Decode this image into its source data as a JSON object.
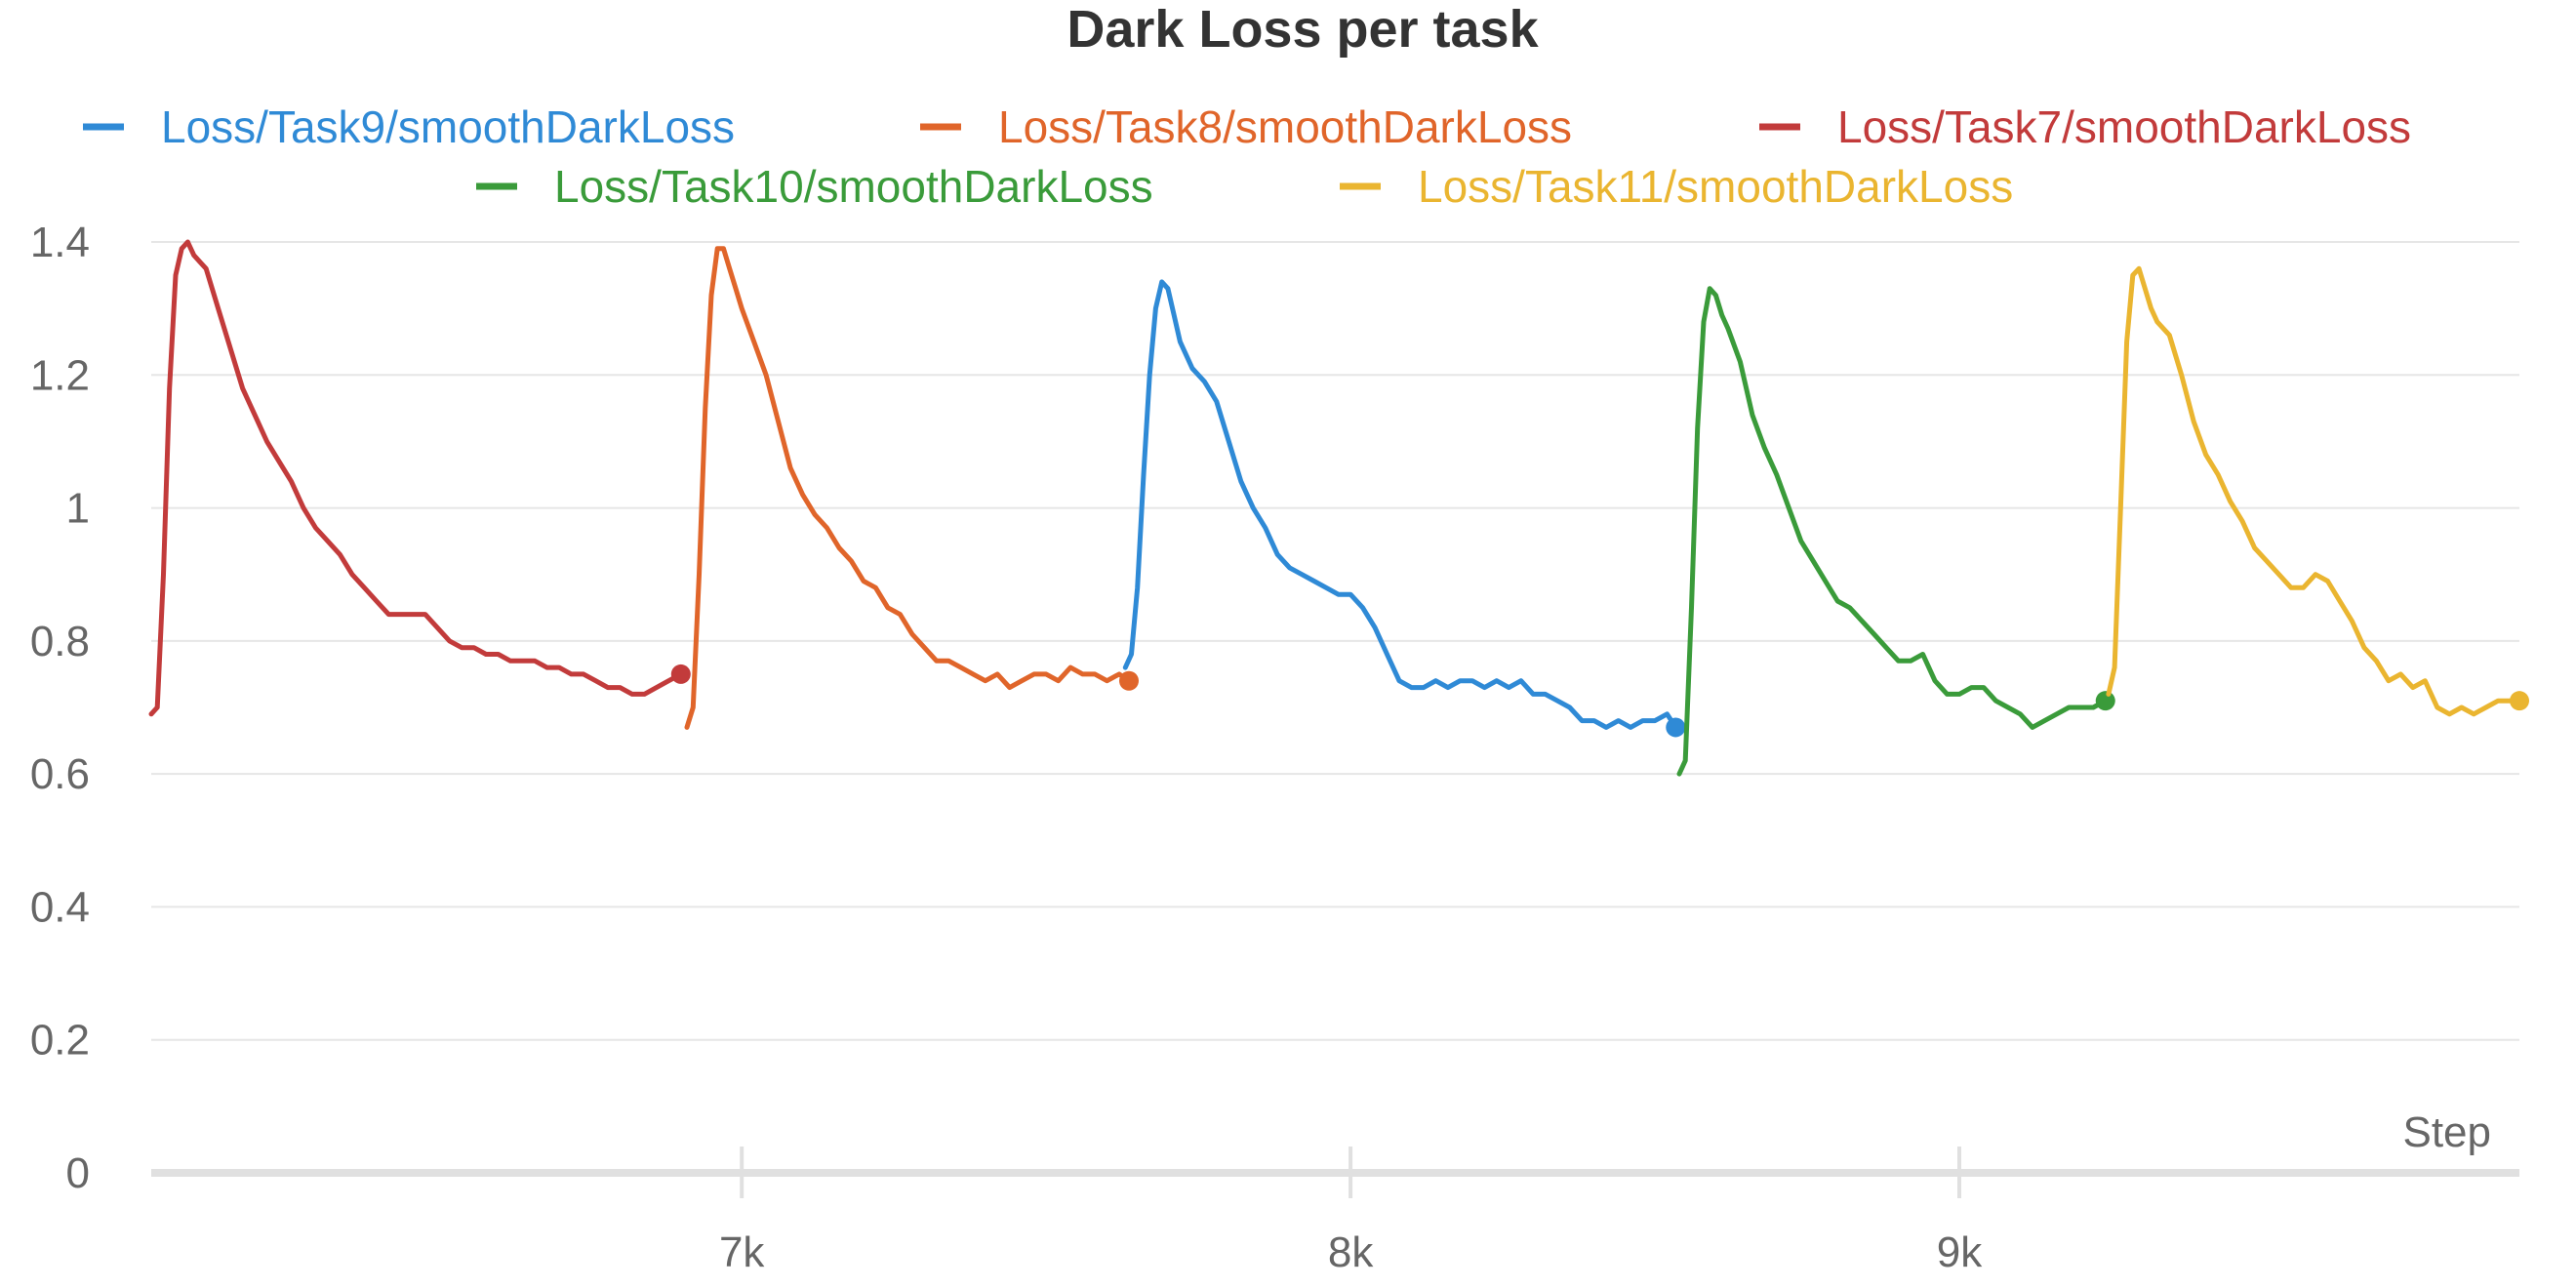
{
  "chart_data": {
    "type": "line",
    "title": "Dark Loss per task",
    "xlabel": "Step",
    "ylabel": "",
    "xlim": [
      6030,
      9920
    ],
    "ylim": [
      0,
      1.4
    ],
    "x_ticks": [
      {
        "value": 7000,
        "label": "7k"
      },
      {
        "value": 8000,
        "label": "8k"
      },
      {
        "value": 9000,
        "label": "9k"
      }
    ],
    "y_ticks": [
      {
        "value": 0,
        "label": "0"
      },
      {
        "value": 0.2,
        "label": "0.2"
      },
      {
        "value": 0.4,
        "label": "0.4"
      },
      {
        "value": 0.6,
        "label": "0.6"
      },
      {
        "value": 0.8,
        "label": "0.8"
      },
      {
        "value": 1,
        "label": "1"
      },
      {
        "value": 1.2,
        "label": "1.2"
      },
      {
        "value": 1.4,
        "label": "1.4"
      }
    ],
    "grid": true,
    "legend_position": "top",
    "series": [
      {
        "name": "Loss/Task9/smoothDarkLoss",
        "color": "#2f8ad6",
        "x": [
          7630,
          7640,
          7650,
          7660,
          7670,
          7680,
          7690,
          7700,
          7710,
          7720,
          7740,
          7760,
          7780,
          7800,
          7820,
          7840,
          7860,
          7880,
          7900,
          7920,
          7940,
          7960,
          7980,
          8000,
          8020,
          8040,
          8060,
          8080,
          8100,
          8120,
          8140,
          8160,
          8180,
          8200,
          8220,
          8240,
          8260,
          8280,
          8300,
          8320,
          8340,
          8360,
          8380,
          8400,
          8420,
          8440,
          8460,
          8480,
          8500,
          8520,
          8534
        ],
        "y": [
          0.76,
          0.78,
          0.88,
          1.05,
          1.2,
          1.3,
          1.34,
          1.33,
          1.29,
          1.25,
          1.21,
          1.19,
          1.16,
          1.1,
          1.04,
          1.0,
          0.97,
          0.93,
          0.91,
          0.9,
          0.89,
          0.88,
          0.87,
          0.87,
          0.85,
          0.82,
          0.78,
          0.74,
          0.73,
          0.73,
          0.74,
          0.73,
          0.74,
          0.74,
          0.73,
          0.74,
          0.73,
          0.74,
          0.72,
          0.72,
          0.71,
          0.7,
          0.68,
          0.68,
          0.67,
          0.68,
          0.67,
          0.68,
          0.68,
          0.69,
          0.67
        ]
      },
      {
        "name": "Loss/Task8/smoothDarkLoss",
        "color": "#e0652a",
        "x": [
          6910,
          6920,
          6930,
          6940,
          6950,
          6960,
          6970,
          6980,
          6990,
          7000,
          7020,
          7040,
          7060,
          7080,
          7100,
          7120,
          7140,
          7160,
          7180,
          7200,
          7220,
          7240,
          7260,
          7280,
          7300,
          7320,
          7340,
          7360,
          7380,
          7400,
          7420,
          7440,
          7460,
          7480,
          7500,
          7520,
          7540,
          7560,
          7580,
          7600,
          7620,
          7636
        ],
        "y": [
          0.67,
          0.7,
          0.9,
          1.15,
          1.32,
          1.39,
          1.39,
          1.36,
          1.33,
          1.3,
          1.25,
          1.2,
          1.13,
          1.06,
          1.02,
          0.99,
          0.97,
          0.94,
          0.92,
          0.89,
          0.88,
          0.85,
          0.84,
          0.81,
          0.79,
          0.77,
          0.77,
          0.76,
          0.75,
          0.74,
          0.75,
          0.73,
          0.74,
          0.75,
          0.75,
          0.74,
          0.76,
          0.75,
          0.75,
          0.74,
          0.75,
          0.74
        ]
      },
      {
        "name": "Loss/Task7/smoothDarkLoss",
        "color": "#c23b3b",
        "x": [
          6030,
          6040,
          6050,
          6060,
          6070,
          6080,
          6090,
          6100,
          6110,
          6120,
          6140,
          6160,
          6180,
          6200,
          6220,
          6240,
          6260,
          6280,
          6300,
          6320,
          6340,
          6360,
          6380,
          6400,
          6420,
          6440,
          6460,
          6480,
          6500,
          6520,
          6540,
          6560,
          6580,
          6600,
          6620,
          6640,
          6660,
          6680,
          6700,
          6720,
          6740,
          6760,
          6780,
          6800,
          6820,
          6840,
          6860,
          6880,
          6900
        ],
        "y": [
          0.69,
          0.7,
          0.9,
          1.18,
          1.35,
          1.39,
          1.4,
          1.38,
          1.37,
          1.36,
          1.3,
          1.24,
          1.18,
          1.14,
          1.1,
          1.07,
          1.04,
          1.0,
          0.97,
          0.95,
          0.93,
          0.9,
          0.88,
          0.86,
          0.84,
          0.84,
          0.84,
          0.84,
          0.82,
          0.8,
          0.79,
          0.79,
          0.78,
          0.78,
          0.77,
          0.77,
          0.77,
          0.76,
          0.76,
          0.75,
          0.75,
          0.74,
          0.73,
          0.73,
          0.72,
          0.72,
          0.73,
          0.74,
          0.75
        ]
      },
      {
        "name": "Loss/Task10/smoothDarkLoss",
        "color": "#3a9b3a",
        "x": [
          8540,
          8550,
          8560,
          8570,
          8580,
          8590,
          8600,
          8610,
          8620,
          8640,
          8660,
          8680,
          8700,
          8720,
          8740,
          8760,
          8780,
          8800,
          8820,
          8840,
          8860,
          8880,
          8900,
          8920,
          8940,
          8960,
          8980,
          9000,
          9020,
          9040,
          9060,
          9080,
          9100,
          9120,
          9140,
          9160,
          9180,
          9200,
          9220,
          9240
        ],
        "y": [
          0.6,
          0.62,
          0.85,
          1.12,
          1.28,
          1.33,
          1.32,
          1.29,
          1.27,
          1.22,
          1.14,
          1.09,
          1.05,
          1.0,
          0.95,
          0.92,
          0.89,
          0.86,
          0.85,
          0.83,
          0.81,
          0.79,
          0.77,
          0.77,
          0.78,
          0.74,
          0.72,
          0.72,
          0.73,
          0.73,
          0.71,
          0.7,
          0.69,
          0.67,
          0.68,
          0.69,
          0.7,
          0.7,
          0.7,
          0.71
        ]
      },
      {
        "name": "Loss/Task11/smoothDarkLoss",
        "color": "#eab530",
        "x": [
          9245,
          9255,
          9265,
          9275,
          9285,
          9295,
          9305,
          9315,
          9325,
          9345,
          9365,
          9385,
          9405,
          9425,
          9445,
          9465,
          9485,
          9505,
          9525,
          9545,
          9565,
          9585,
          9605,
          9625,
          9645,
          9665,
          9685,
          9705,
          9725,
          9745,
          9765,
          9785,
          9805,
          9825,
          9845,
          9865,
          9885,
          9905,
          9920
        ],
        "y": [
          0.72,
          0.76,
          1.0,
          1.25,
          1.35,
          1.36,
          1.33,
          1.3,
          1.28,
          1.26,
          1.2,
          1.13,
          1.08,
          1.05,
          1.01,
          0.98,
          0.94,
          0.92,
          0.9,
          0.88,
          0.88,
          0.9,
          0.89,
          0.86,
          0.83,
          0.79,
          0.77,
          0.74,
          0.75,
          0.73,
          0.74,
          0.7,
          0.69,
          0.7,
          0.69,
          0.7,
          0.71,
          0.71,
          0.71
        ]
      }
    ]
  }
}
